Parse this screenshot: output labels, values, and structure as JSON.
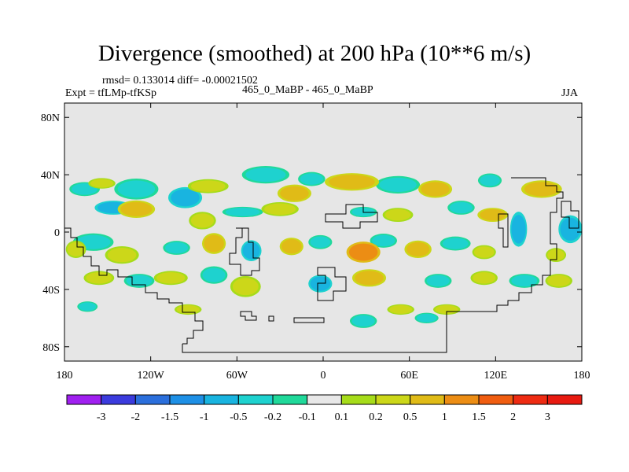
{
  "chart_data": {
    "type": "heatmap",
    "title": "Divergence (smoothed) at 200 hPa (10**6 m/s)",
    "stats_text": "rmsd= 0.133014 diff= -0.00021502",
    "experiment_text": "Expt = tfLMp-tfKSp",
    "center_text": "465_0_MaBP - 465_0_MaBP",
    "season": "JJA",
    "x_ticks": [
      "180",
      "120W",
      "60W",
      "0",
      "60E",
      "120E",
      "180"
    ],
    "x_tick_values": [
      -180,
      -120,
      -60,
      0,
      60,
      120,
      180
    ],
    "y_ticks": [
      "80N",
      "40N",
      "0",
      "40S",
      "80S"
    ],
    "y_tick_values": [
      80,
      40,
      0,
      -40,
      -80
    ],
    "xlim": [
      -180,
      180
    ],
    "ylim": [
      -90,
      90
    ],
    "colorbar_labels": [
      "-3",
      "-2",
      "-1.5",
      "-1",
      "-0.5",
      "-0.2",
      "-0.1",
      "0.1",
      "0.2",
      "0.5",
      "1",
      "1.5",
      "2",
      "3"
    ],
    "colorbar_colors": [
      "#a020f0",
      "#3b3bdd",
      "#2b6fdc",
      "#1e90e6",
      "#19b4e0",
      "#1ed2cf",
      "#20d99a",
      "#e8e8e8",
      "#a6dc1a",
      "#ccd719",
      "#e0bb17",
      "#ec8d14",
      "#f05d10",
      "#ee2b12",
      "#e81a10"
    ],
    "divergence_features": [
      {
        "lon": -166,
        "lat": 30,
        "rlon": 9,
        "rlat": 4,
        "level": -0.2
      },
      {
        "lon": -130,
        "lat": 30,
        "rlon": 13,
        "rlat": 6,
        "level": -0.2
      },
      {
        "lon": -96,
        "lat": 24,
        "rlon": 10,
        "rlat": 6,
        "level": -0.5
      },
      {
        "lon": -40,
        "lat": 40,
        "rlon": 14,
        "rlat": 5,
        "level": -0.2
      },
      {
        "lon": -8,
        "lat": 37,
        "rlon": 8,
        "rlat": 4,
        "level": -0.2
      },
      {
        "lon": 52,
        "lat": 33,
        "rlon": 13,
        "rlat": 5,
        "level": -0.2
      },
      {
        "lon": 116,
        "lat": 36,
        "rlon": 7,
        "rlat": 4,
        "level": -0.2
      },
      {
        "lon": -146,
        "lat": 17,
        "rlon": 11,
        "rlat": 4,
        "level": -0.5
      },
      {
        "lon": -56,
        "lat": 14,
        "rlon": 12,
        "rlat": 3,
        "level": -0.2
      },
      {
        "lon": 28,
        "lat": 14,
        "rlon": 8,
        "rlat": 3,
        "level": -0.2
      },
      {
        "lon": 96,
        "lat": 17,
        "rlon": 8,
        "rlat": 4,
        "level": -0.2
      },
      {
        "lon": -160,
        "lat": -7,
        "rlon": 12,
        "rlat": 5,
        "level": -0.2
      },
      {
        "lon": -102,
        "lat": -11,
        "rlon": 8,
        "rlat": 4,
        "level": -0.2
      },
      {
        "lon": -50,
        "lat": -13,
        "rlon": 6,
        "rlat": 6,
        "level": -0.5
      },
      {
        "lon": -2,
        "lat": -7,
        "rlon": 7,
        "rlat": 4,
        "level": -0.2
      },
      {
        "lon": 42,
        "lat": -6,
        "rlon": 8,
        "rlat": 4,
        "level": -0.2
      },
      {
        "lon": 92,
        "lat": -8,
        "rlon": 9,
        "rlat": 4,
        "level": -0.2
      },
      {
        "lon": 136,
        "lat": 2,
        "rlon": 5,
        "rlat": 10,
        "level": -0.5
      },
      {
        "lon": 172,
        "lat": 2,
        "rlon": 7,
        "rlat": 8,
        "level": -0.5
      },
      {
        "lon": -128,
        "lat": -34,
        "rlon": 9,
        "rlat": 4,
        "level": -0.2
      },
      {
        "lon": -76,
        "lat": -30,
        "rlon": 8,
        "rlat": 5,
        "level": -0.2
      },
      {
        "lon": -2,
        "lat": -36,
        "rlon": 7,
        "rlat": 5,
        "level": -0.5
      },
      {
        "lon": 80,
        "lat": -34,
        "rlon": 8,
        "rlat": 4,
        "level": -0.2
      },
      {
        "lon": 140,
        "lat": -34,
        "rlon": 9,
        "rlat": 4,
        "level": -0.2
      },
      {
        "lon": -164,
        "lat": -52,
        "rlon": 6,
        "rlat": 3,
        "level": -0.2
      },
      {
        "lon": 28,
        "lat": -62,
        "rlon": 8,
        "rlat": 4,
        "level": -0.2
      },
      {
        "lon": 72,
        "lat": -60,
        "rlon": 7,
        "rlat": 3,
        "level": -0.2
      },
      {
        "lon": -154,
        "lat": 34,
        "rlon": 8,
        "rlat": 3,
        "level": 0.2
      },
      {
        "lon": -80,
        "lat": 32,
        "rlon": 12,
        "rlat": 4,
        "level": 0.2
      },
      {
        "lon": -20,
        "lat": 27,
        "rlon": 10,
        "rlat": 5,
        "level": 0.5
      },
      {
        "lon": 20,
        "lat": 35,
        "rlon": 16,
        "rlat": 5,
        "level": 0.5
      },
      {
        "lon": 78,
        "lat": 30,
        "rlon": 10,
        "rlat": 5,
        "level": 0.5
      },
      {
        "lon": 152,
        "lat": 30,
        "rlon": 12,
        "rlat": 5,
        "level": 0.5
      },
      {
        "lon": -130,
        "lat": 16,
        "rlon": 11,
        "rlat": 5,
        "level": 0.5
      },
      {
        "lon": -84,
        "lat": 8,
        "rlon": 8,
        "rlat": 5,
        "level": 0.2
      },
      {
        "lon": -30,
        "lat": 16,
        "rlon": 11,
        "rlat": 4,
        "level": 0.2
      },
      {
        "lon": 52,
        "lat": 12,
        "rlon": 9,
        "rlat": 4,
        "level": 0.2
      },
      {
        "lon": 118,
        "lat": 12,
        "rlon": 9,
        "rlat": 4,
        "level": 0.5
      },
      {
        "lon": -172,
        "lat": -12,
        "rlon": 6,
        "rlat": 5,
        "level": 0.2
      },
      {
        "lon": -140,
        "lat": -16,
        "rlon": 10,
        "rlat": 5,
        "level": 0.2
      },
      {
        "lon": -76,
        "lat": -8,
        "rlon": 7,
        "rlat": 6,
        "level": 0.5
      },
      {
        "lon": -22,
        "lat": -10,
        "rlon": 7,
        "rlat": 5,
        "level": 0.5
      },
      {
        "lon": 28,
        "lat": -14,
        "rlon": 10,
        "rlat": 6,
        "level": 1
      },
      {
        "lon": 66,
        "lat": -12,
        "rlon": 8,
        "rlat": 5,
        "level": 0.5
      },
      {
        "lon": 112,
        "lat": -14,
        "rlon": 7,
        "rlat": 4,
        "level": 0.2
      },
      {
        "lon": 162,
        "lat": -16,
        "rlon": 6,
        "rlat": 4,
        "level": 0.2
      },
      {
        "lon": -156,
        "lat": -32,
        "rlon": 9,
        "rlat": 4,
        "level": 0.2
      },
      {
        "lon": -106,
        "lat": -32,
        "rlon": 10,
        "rlat": 4,
        "level": 0.2
      },
      {
        "lon": -54,
        "lat": -38,
        "rlon": 9,
        "rlat": 6,
        "level": 0.2
      },
      {
        "lon": 32,
        "lat": -32,
        "rlon": 10,
        "rlat": 5,
        "level": 0.5
      },
      {
        "lon": 112,
        "lat": -32,
        "rlon": 8,
        "rlat": 4,
        "level": 0.2
      },
      {
        "lon": 164,
        "lat": -34,
        "rlon": 8,
        "rlat": 4,
        "level": 0.2
      },
      {
        "lon": -94,
        "lat": -54,
        "rlon": 8,
        "rlat": 3,
        "level": 0.2
      },
      {
        "lon": 54,
        "lat": -54,
        "rlon": 8,
        "rlat": 3,
        "level": 0.2
      },
      {
        "lon": 86,
        "lat": -54,
        "rlon": 8,
        "rlat": 3,
        "level": 0.2
      }
    ]
  }
}
